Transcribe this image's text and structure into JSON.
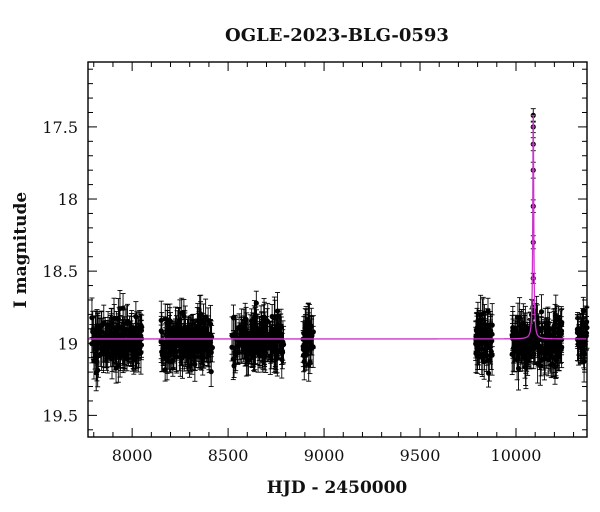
{
  "chart_data": {
    "type": "scatter",
    "title": "OGLE-2023-BLG-0593",
    "xlabel": "HJD - 2450000",
    "ylabel": "I magnitude",
    "xlim": [
      7770,
      10370
    ],
    "ylim": [
      19.65,
      17.05
    ],
    "y_inverted": true,
    "x_ticks": [
      8000,
      8500,
      9000,
      9500,
      10000
    ],
    "y_ticks": [
      17.5,
      18,
      18.5,
      19,
      19.5
    ],
    "x_tick_labels": [
      "8000",
      "8500",
      "9000",
      "9500",
      "10000"
    ],
    "y_tick_labels": [
      "17.5",
      "18",
      "18.5",
      "19",
      "19.5"
    ],
    "grid": false,
    "legend": "none",
    "colors": {
      "points": "#000000",
      "model": "#cc33cc"
    },
    "series": [
      {
        "kind": "observations_with_error_bars",
        "baseline_magnitude": 18.98,
        "typical_error": 0.12,
        "observing_seasons": [
          {
            "x_start": 7790,
            "x_end": 8050
          },
          {
            "x_start": 8150,
            "x_end": 8420
          },
          {
            "x_start": 8520,
            "x_end": 8790
          },
          {
            "x_start": 8890,
            "x_end": 8945
          },
          {
            "x_start": 9790,
            "x_end": 9880
          },
          {
            "x_start": 9980,
            "x_end": 10240
          },
          {
            "x_start": 10320,
            "x_end": 10370
          }
        ],
        "peak_points": [
          {
            "x": 10090,
            "y": 17.42
          },
          {
            "x": 10090,
            "y": 17.5
          },
          {
            "x": 10090,
            "y": 17.62
          },
          {
            "x": 10090,
            "y": 17.8
          },
          {
            "x": 10090,
            "y": 18.05
          },
          {
            "x": 10090,
            "y": 18.3
          },
          {
            "x": 10090,
            "y": 18.55
          },
          {
            "x": 10088,
            "y": 18.75
          },
          {
            "x": 10093,
            "y": 18.8
          }
        ]
      },
      {
        "kind": "model_curve",
        "baseline_magnitude": 18.97,
        "peak_x": 10090,
        "peak_magnitude": 17.42,
        "timescale_days": 3
      }
    ]
  }
}
